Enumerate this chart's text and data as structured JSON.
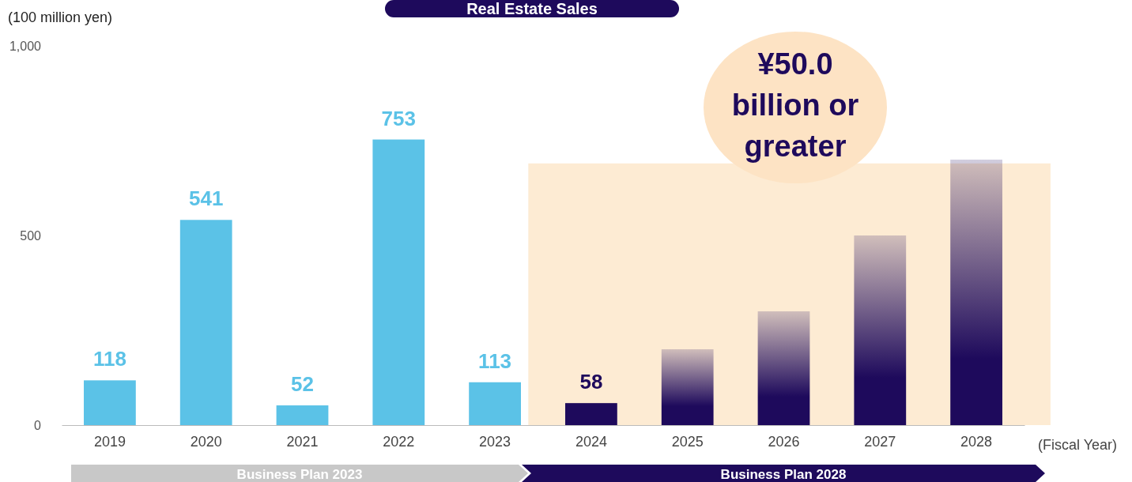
{
  "chart_data": {
    "type": "bar",
    "title": "Real Estate Sales",
    "ylabel": "(100 million yen)",
    "xlabel": "(Fiscal Year)",
    "categories": [
      "2019",
      "2020",
      "2021",
      "2022",
      "2023",
      "2024",
      "2025",
      "2026",
      "2027",
      "2028"
    ],
    "values": [
      118,
      541,
      52,
      753,
      113,
      58,
      200,
      300,
      500,
      700
    ],
    "colors": [
      "#5bc2e7",
      "#5bc2e7",
      "#5bc2e7",
      "#5bc2e7",
      "#5bc2e7",
      "#1e0a5c",
      "#1e0a5c",
      "#1e0a5c",
      "#1e0a5c",
      "#1e0a5c"
    ],
    "value_labels": [
      "118",
      "541",
      "52",
      "753",
      "113",
      "58",
      null,
      null,
      null,
      null
    ],
    "ylim": [
      0,
      1000
    ],
    "yticks": [
      0,
      500,
      {
        "value": 1000,
        "label": "1,000"
      }
    ],
    "grid": false,
    "annotations": [
      "¥50.0 billion or greater",
      "Business Plan 2023",
      "Business Plan 2028"
    ]
  }
}
